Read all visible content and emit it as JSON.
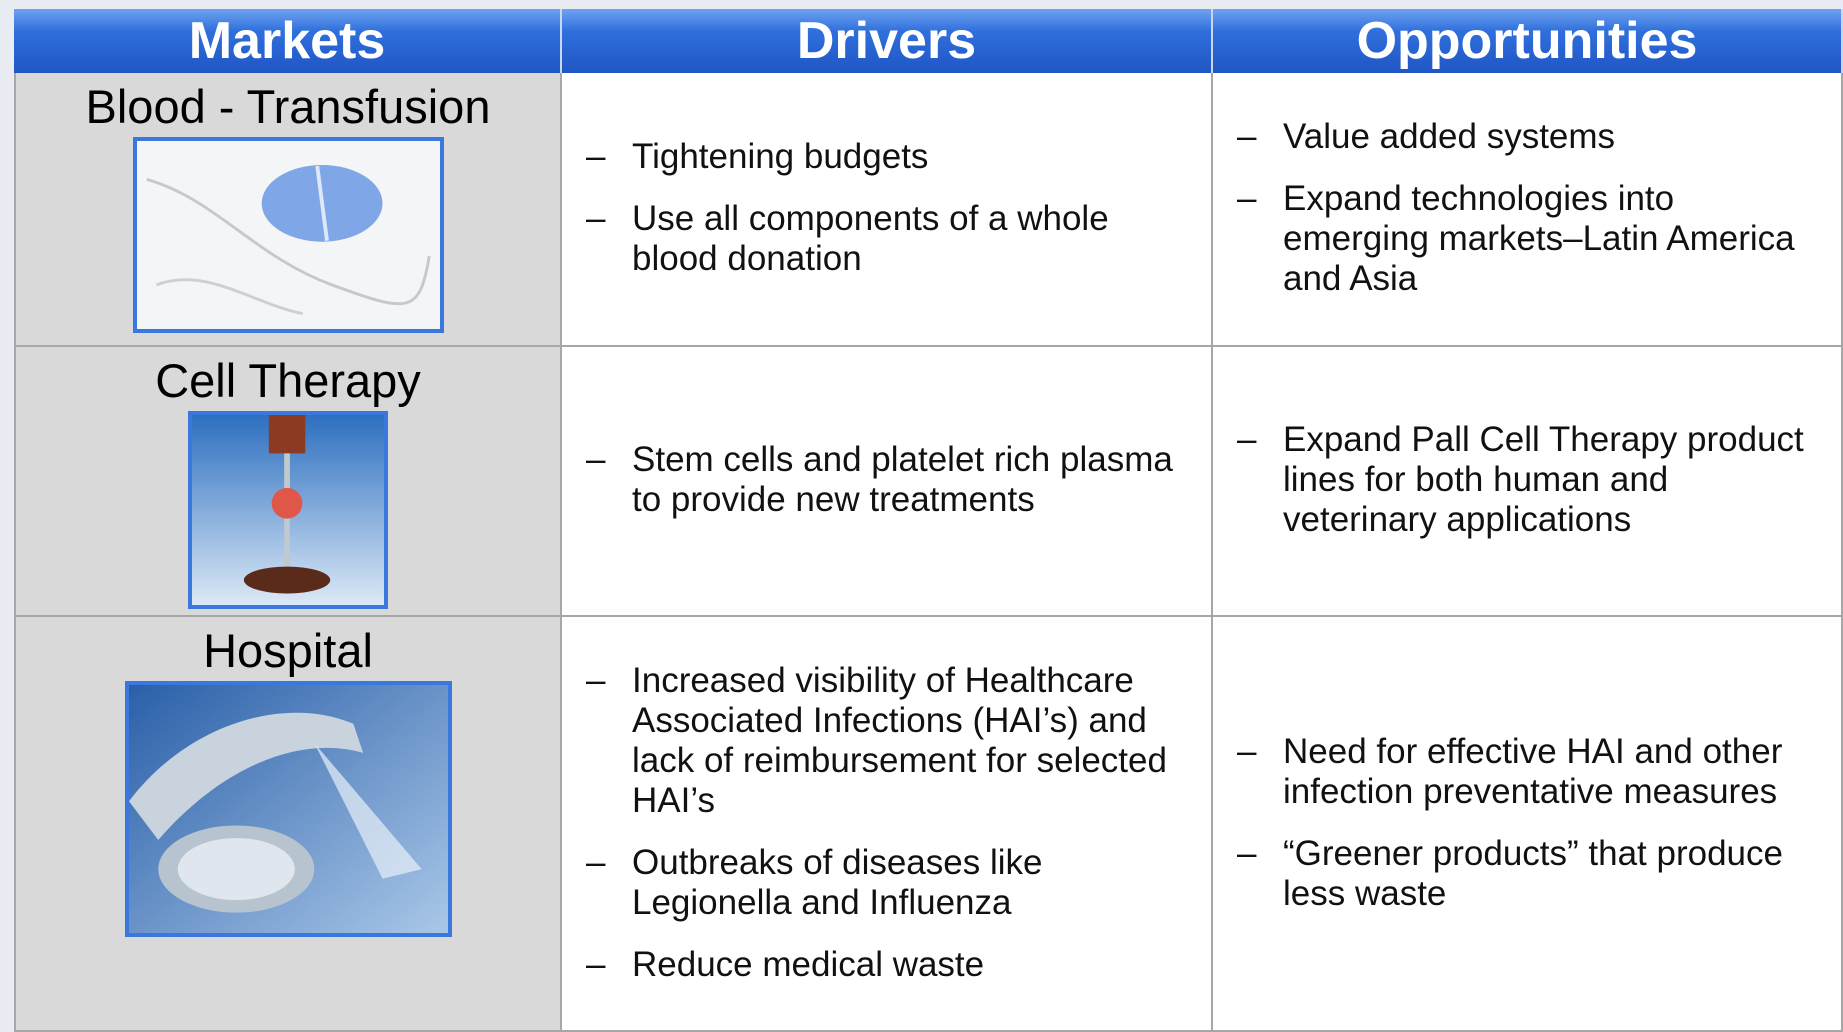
{
  "header": {
    "columns": [
      "Markets",
      "Drivers",
      "Opportunities"
    ]
  },
  "rows": [
    {
      "market": "Blood - Transfusion",
      "drivers": [
        "Tightening budgets",
        "Use all components of a whole blood donation"
      ],
      "opportunities": [
        "Value added systems",
        "Expand technologies into emerging markets–Latin America and Asia"
      ]
    },
    {
      "market": "Cell Therapy",
      "drivers": [
        "Stem cells and platelet rich plasma to provide new treatments"
      ],
      "opportunities": [
        "Expand Pall Cell Therapy product lines for both human and veterinary applications"
      ]
    },
    {
      "market": "Hospital",
      "drivers": [
        "Increased visibility of Healthcare Associated Infections (HAI’s) and lack of reimbursement for selected HAI’s",
        "Outbreaks of diseases like Legionella and Influenza",
        "Reduce medical waste"
      ],
      "opportunities": [
        "Need for effective HAI and other infection preventative measures",
        "“Greener products” that produce less waste"
      ]
    }
  ]
}
